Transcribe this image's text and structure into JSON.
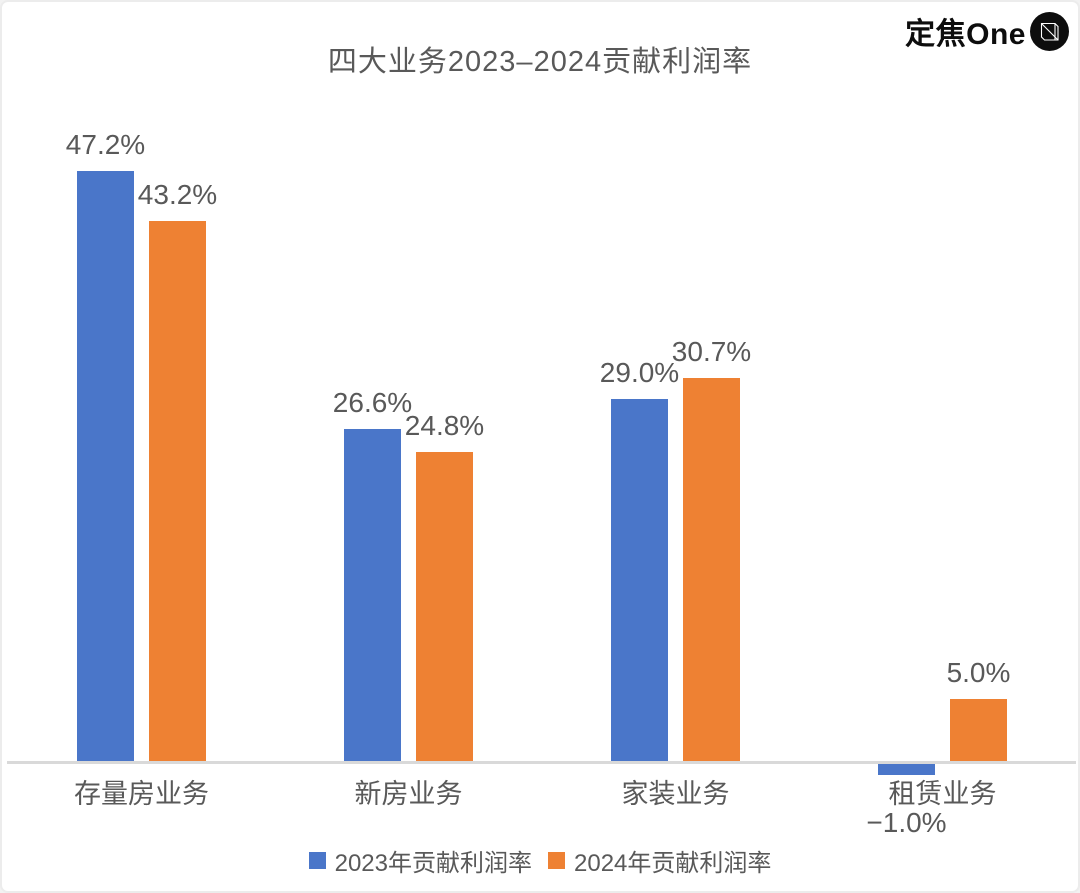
{
  "logo": {
    "text": "定焦One",
    "icon": "dingjiao-one-logo-icon"
  },
  "chart_data": {
    "type": "bar",
    "title": "四大业务2023–2024贡献利润率",
    "categories": [
      "存量房业务",
      "新房业务",
      "家装业务",
      "租赁业务"
    ],
    "series": [
      {
        "name": "2023年贡献利润率",
        "color": "#4a76c9",
        "values": [
          47.2,
          26.6,
          29.0,
          -1.0
        ],
        "labels": [
          "47.2%",
          "26.6%",
          "29.0%",
          "−1.0%"
        ]
      },
      {
        "name": "2024年贡献利润率",
        "color": "#ee8133",
        "values": [
          43.2,
          24.8,
          30.7,
          5.0
        ],
        "labels": [
          "43.2%",
          "24.8%",
          "30.7%",
          "5.0%"
        ]
      }
    ],
    "unit": "%",
    "ylim": [
      -5,
      50
    ],
    "grid": false,
    "legend_position": "bottom",
    "axis_line_color": "#d9d9d9",
    "text_color": "#595959"
  }
}
